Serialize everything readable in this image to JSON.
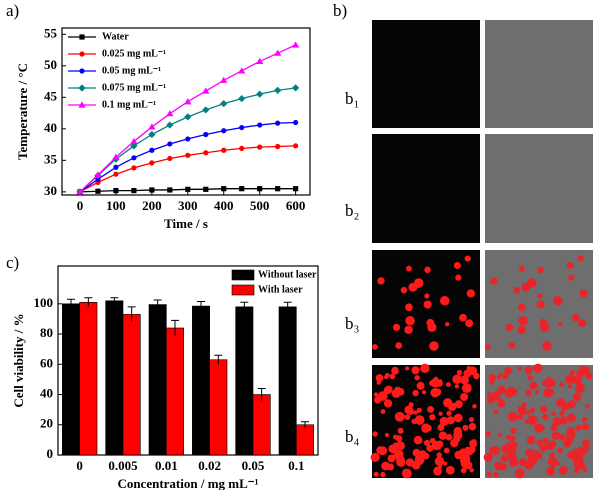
{
  "chart_data": [
    {
      "type": "line",
      "label": "a)",
      "x_label": "Time / s",
      "y_label": "Temperature / °C",
      "x": [
        0,
        50,
        100,
        150,
        200,
        250,
        300,
        350,
        400,
        450,
        500,
        550,
        600
      ],
      "xlim": [
        -50,
        640
      ],
      "xticks": [
        0,
        100,
        200,
        300,
        400,
        500,
        600
      ],
      "ylim": [
        29.5,
        56
      ],
      "yticks": [
        30,
        35,
        40,
        45,
        50,
        55
      ],
      "legend": "top-left",
      "series": [
        {
          "name": "Water",
          "color": "#000000",
          "marker": "square",
          "values": [
            30,
            30.1,
            30.2,
            30.2,
            30.3,
            30.3,
            30.4,
            30.4,
            30.5,
            30.5,
            30.5,
            30.5,
            30.5
          ]
        },
        {
          "name": "0.025 mg mL⁻¹",
          "color": "#ff0000",
          "marker": "circle",
          "values": [
            30,
            31.5,
            32.8,
            33.8,
            34.6,
            35.3,
            35.8,
            36.2,
            36.6,
            36.9,
            37.1,
            37.2,
            37.3
          ]
        },
        {
          "name": "0.05 mg mL⁻¹",
          "color": "#0000ff",
          "marker": "circle",
          "values": [
            30,
            32,
            33.9,
            35.4,
            36.6,
            37.6,
            38.4,
            39.1,
            39.7,
            40.2,
            40.6,
            40.9,
            41
          ]
        },
        {
          "name": "0.075 mg mL⁻¹",
          "color": "#008080",
          "marker": "diamond",
          "values": [
            30,
            32.6,
            35.2,
            37.3,
            39.1,
            40.6,
            41.9,
            43,
            44,
            44.8,
            45.5,
            46.1,
            46.5
          ]
        },
        {
          "name": "0.1 mg mL⁻¹",
          "color": "#ff00ff",
          "marker": "triangle",
          "values": [
            30,
            32.7,
            35.5,
            38,
            40.3,
            42.4,
            44.3,
            46,
            47.7,
            49.2,
            50.7,
            52,
            53.3
          ]
        }
      ]
    },
    {
      "type": "bar",
      "label": "c)",
      "x_label": "Concentration / mg mL⁻¹",
      "y_label": "Cell viability / %",
      "categories": [
        "0",
        "0.005",
        "0.01",
        "0.02",
        "0.05",
        "0.1"
      ],
      "ylim": [
        0,
        125
      ],
      "yticks": [
        0,
        20,
        40,
        60,
        80,
        100
      ],
      "legend": "top-right",
      "series": [
        {
          "name": "Without laser",
          "color": "#000000",
          "values": [
            100,
            102,
            99.5,
            98.5,
            98,
            98
          ],
          "errors": [
            3,
            2,
            3,
            3,
            3,
            3
          ]
        },
        {
          "name": "With laser",
          "color": "#ff0000",
          "values": [
            101,
            93,
            84,
            63,
            40,
            20
          ],
          "errors": [
            3,
            5,
            5,
            3,
            4,
            2
          ]
        }
      ]
    }
  ],
  "figure": {
    "label": "b)",
    "image_rows": [
      "b₁",
      "b₂",
      "b₃",
      "b₄"
    ]
  }
}
